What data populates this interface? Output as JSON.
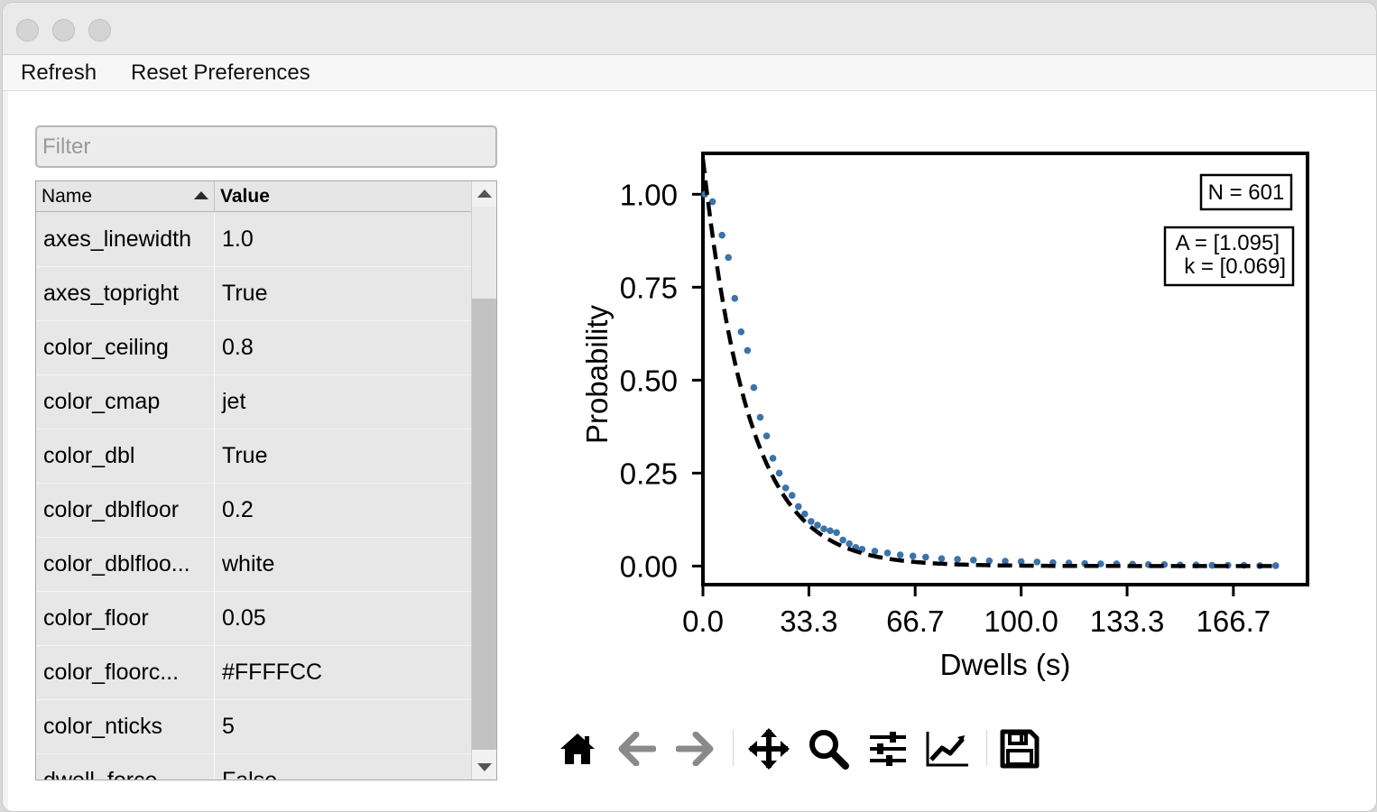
{
  "menubar": {
    "refresh": "Refresh",
    "reset_preferences": "Reset Preferences"
  },
  "filter": {
    "placeholder": "Filter",
    "value": ""
  },
  "table": {
    "columns": {
      "name": "Name",
      "value": "Value"
    },
    "rows": [
      {
        "name": "axes_linewidth",
        "value": "1.0"
      },
      {
        "name": "axes_topright",
        "value": "True"
      },
      {
        "name": "color_ceiling",
        "value": "0.8"
      },
      {
        "name": "color_cmap",
        "value": "jet"
      },
      {
        "name": "color_dbl",
        "value": "True"
      },
      {
        "name": "color_dblfloor",
        "value": "0.2"
      },
      {
        "name": "color_dblfloo...",
        "value": "white"
      },
      {
        "name": "color_floor",
        "value": "0.05"
      },
      {
        "name": "color_floorc...",
        "value": "#FFFFCC"
      },
      {
        "name": "color_nticks",
        "value": "5"
      },
      {
        "name": "dwell_force...",
        "value": "False"
      }
    ]
  },
  "chart_data": {
    "type": "scatter",
    "xlabel": "Dwells (s)",
    "ylabel": "Probability",
    "xlim": [
      0,
      190
    ],
    "ylim": [
      -0.05,
      1.11
    ],
    "xticks": [
      "0.0",
      "33.3",
      "66.7",
      "100.0",
      "133.3",
      "166.7"
    ],
    "yticks": [
      "0.00",
      "0.25",
      "0.50",
      "0.75",
      "1.00"
    ],
    "annotations": {
      "n": "N = 601",
      "fit_a": "A = [1.095]",
      "fit_k": "k = [0.069]"
    },
    "fit": {
      "A": 1.095,
      "k": 0.069,
      "style": "dashed",
      "color": "#000000"
    },
    "points_color": "#3b73ab",
    "points": {
      "x": [
        0.6,
        3,
        6,
        8,
        10,
        12,
        14,
        16,
        18,
        20,
        22,
        24,
        26,
        28,
        30,
        32,
        34,
        36,
        38,
        40,
        42,
        44,
        46,
        48,
        50,
        54,
        58,
        62,
        66,
        70,
        75,
        80,
        85,
        90,
        95,
        100,
        105,
        110,
        115,
        120,
        125,
        130,
        135,
        140,
        145,
        150,
        155,
        160,
        165,
        170,
        175,
        180
      ],
      "y": [
        1.0,
        0.98,
        0.89,
        0.83,
        0.72,
        0.63,
        0.58,
        0.48,
        0.4,
        0.35,
        0.29,
        0.25,
        0.21,
        0.19,
        0.16,
        0.14,
        0.12,
        0.11,
        0.1,
        0.095,
        0.09,
        0.07,
        0.06,
        0.05,
        0.045,
        0.04,
        0.035,
        0.03,
        0.027,
        0.024,
        0.02,
        0.018,
        0.016,
        0.014,
        0.013,
        0.012,
        0.011,
        0.009,
        0.008,
        0.007,
        0.006,
        0.006,
        0.005,
        0.004,
        0.004,
        0.003,
        0.003,
        0.002,
        0.002,
        0.002,
        0.001,
        0.001
      ]
    }
  },
  "toolbar": {
    "icons": [
      "home-icon",
      "back-arrow-icon",
      "forward-arrow-icon",
      "pan-icon",
      "zoom-icon",
      "subplots-icon",
      "edit-curve-icon",
      "save-icon"
    ],
    "disabled_color": "#8a8a8a",
    "enabled_color": "#000000"
  }
}
